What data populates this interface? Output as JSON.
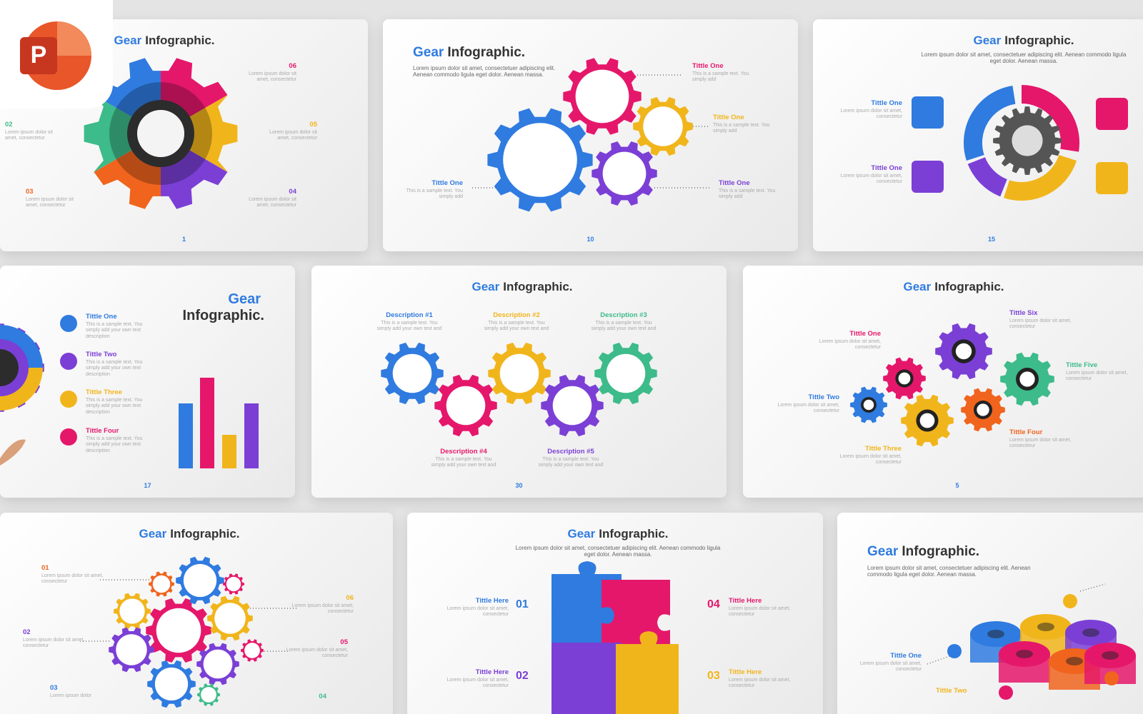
{
  "logo": "P",
  "slides": [
    {
      "page": "1",
      "title_accent": "Gear",
      "title_rest": "Infographic.",
      "labels": [
        {
          "num": "06",
          "text": "Lorem ipsum dolor sit amet, consectetur"
        },
        {
          "num": "05",
          "text": "Lorem ipsum dolor sit amet, consectetur"
        },
        {
          "num": "04",
          "text": "Lorem ipsum dolor sit amet, consectetur"
        },
        {
          "num": "03",
          "text": "Lorem ipsum dolor sit amet, consectetur"
        },
        {
          "num": "02",
          "text": "Lorem ipsum dolor sit amet, consectetur"
        }
      ]
    },
    {
      "page": "10",
      "title_accent": "Gear",
      "title_rest": "Infographic.",
      "subtitle": "Lorem ipsum dolor sit amet, consectetuer adipiscing elit. Aenean commodo ligula eget dolor. Aenean massa.",
      "labels": [
        {
          "title": "Tittle One",
          "text": "This is a sample text. You simply add"
        },
        {
          "title": "Tittle One",
          "text": "This is a sample text. You simply add"
        },
        {
          "title": "Tittle One",
          "text": "This is a sample text. You simply add"
        },
        {
          "title": "Tittle One",
          "text": "This is a sample text. You simply add"
        }
      ]
    },
    {
      "page": "15",
      "title_accent": "Gear",
      "title_rest": "Infographic.",
      "subtitle": "Lorem ipsum dolor sit amet, consectetuer adipiscing elit. Aenean commodo ligula eget dolor. Aenean massa.",
      "labels": [
        {
          "title": "Tittle One",
          "text": "Lorem ipsum dolor sit amet, consectetur"
        },
        {
          "title": "Tittle One",
          "text": "Lorem ipsum dolor sit amet, consectetur"
        }
      ]
    },
    {
      "page": "17",
      "title_accent": "Gear",
      "title_rest": "Infographic.",
      "labels": [
        {
          "title": "Tittle One",
          "text": "This is a sample text. You simply add your own text description"
        },
        {
          "title": "Tittle Two",
          "text": "This is a sample text. You simply add your own text description"
        },
        {
          "title": "Tittle Three",
          "text": "This is a sample text. You simply add your own text description"
        },
        {
          "title": "Tittle Four",
          "text": "This is a sample text. You simply add your own text description"
        }
      ]
    },
    {
      "page": "30",
      "title_accent": "Gear",
      "title_rest": "Infographic.",
      "labels": [
        {
          "title": "Description #1",
          "text": "This is a sample text. You simply add your own text and"
        },
        {
          "title": "Description #2",
          "text": "This is a sample text. You simply add your own text and"
        },
        {
          "title": "Description #3",
          "text": "This is a sample text. You simply add your own text and"
        },
        {
          "title": "Description #4",
          "text": "This is a sample text. You simply add your own text and"
        },
        {
          "title": "Description #5",
          "text": "This is a sample text. You simply add your own text and"
        }
      ]
    },
    {
      "page": "5",
      "title_accent": "Gear",
      "title_rest": "Infographic.",
      "labels": [
        {
          "title": "Tittle One",
          "text": "Lorem ipsum dolor sit amet, consectetur"
        },
        {
          "title": "Tittle Two",
          "text": "Lorem ipsum dolor sit amet, consectetur"
        },
        {
          "title": "Tittle Three",
          "text": "Lorem ipsum dolor sit amet, consectetur"
        },
        {
          "title": "Tittle Four",
          "text": "Lorem ipsum dolor sit amet, consectetur"
        },
        {
          "title": "Tittle Five",
          "text": "Lorem ipsum dolor sit amet, consectetur"
        },
        {
          "title": "Tittle Six",
          "text": "Lorem ipsum dolor sit amet, consectetur"
        }
      ]
    },
    {
      "title_accent": "Gear",
      "title_rest": "Infographic.",
      "labels": [
        {
          "num": "01",
          "text": "Lorem ipsum dolor sit amet, consectetur"
        },
        {
          "num": "02",
          "text": "Lorem ipsum dolor sit amet, consectetur"
        },
        {
          "num": "03",
          "text": "Lorem ipsum dolor"
        },
        {
          "num": "06",
          "text": "Lorem ipsum dolor sit amet, consectetur"
        },
        {
          "num": "05",
          "text": "Lorem ipsum dolor sit amet, consectetur"
        },
        {
          "num": "04",
          "text": ""
        }
      ]
    },
    {
      "title_accent": "Gear",
      "title_rest": "Infographic.",
      "subtitle": "Lorem ipsum dolor sit amet, consectetuer adipiscing elit. Aenean commodo ligula eget dolor. Aenean massa.",
      "labels": [
        {
          "num": "01",
          "title": "Tittle Here",
          "text": "Lorem ipsum dolor sit amet, consectetur"
        },
        {
          "num": "02",
          "title": "Tittle Here",
          "text": "Lorem ipsum dolor sit amet, consectetur"
        },
        {
          "num": "04",
          "title": "Tittle Here",
          "text": "Lorem ipsum dolor sit amet, consectetur"
        },
        {
          "num": "03",
          "title": "Tittle Here",
          "text": "Lorem ipsum dolor sit amet, consectetur"
        }
      ]
    },
    {
      "title_accent": "Gear",
      "title_rest": "Infographic.",
      "subtitle": "Lorem ipsum dolor sit amet, consectetuer adipiscing elit. Aenean commodo ligula eget dolor. Aenean massa.",
      "labels": [
        {
          "title": "Tittle One",
          "text": "Lorem ipsum dolor sit amet, consectetur"
        },
        {
          "title": "Tittle Two"
        }
      ]
    }
  ]
}
